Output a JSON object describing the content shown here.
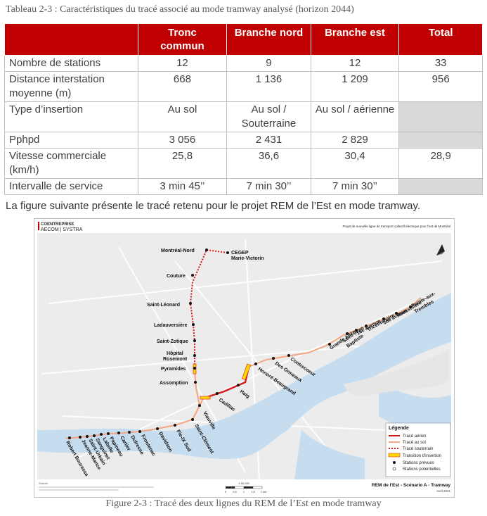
{
  "table_caption": "Tableau 2-3 : Caractéristiques du tracé associé au mode tramway analysé (horizon 2044)",
  "table": {
    "headers": [
      "",
      "Tronc\ncommun",
      "Branche nord",
      "Branche est",
      "Total"
    ],
    "header_lines": [
      [
        "",
        ""
      ],
      [
        "Tronc",
        "commun"
      ],
      [
        "Branche nord",
        ""
      ],
      [
        "Branche est",
        ""
      ],
      [
        "Total",
        ""
      ]
    ],
    "rows": [
      {
        "label": "Nombre de stations",
        "cells": [
          "12",
          "9",
          "12",
          "33"
        ]
      },
      {
        "label": "Distance interstation moyenne (m)",
        "cells": [
          "668",
          "1 136",
          "1 209",
          "956"
        ]
      },
      {
        "label": "Type d’insertion",
        "cells": [
          "Au sol",
          "Au sol / Souterraine",
          "Au sol / aérienne",
          ""
        ]
      },
      {
        "label": "Pphpd",
        "cells": [
          "3 056",
          "2 431",
          "2 829",
          ""
        ]
      },
      {
        "label": "Vitesse commerciale (km/h)",
        "cells": [
          "25,8",
          "36,6",
          "30,4",
          "28,9"
        ]
      },
      {
        "label": "Intervalle de service",
        "cells": [
          "3 min 45’’",
          "7 min 30’’",
          "7 min 30’’",
          ""
        ]
      }
    ],
    "grey_cells": [
      [
        2,
        3
      ],
      [
        3,
        3
      ],
      [
        5,
        3
      ]
    ]
  },
  "paragraph": "La figure suivante présente le tracé retenu pour le projet REM de l’Est en mode tramway.",
  "map": {
    "brand_line1": "COENTREPRISE",
    "brand_line2": "AECOM | SYSTRA",
    "header_title": "Projet de nouvelle ligne de transport collectif électrique pour l'est de Montréal",
    "north_stations": [
      "Montréal-Nord",
      "CEGEP Marie-Victorin",
      "Couture",
      "Saint-Léonard",
      "Ladauversière",
      "Saint-Zotique",
      "Hôpital Rosemont",
      "Pyramides",
      "Assomption"
    ],
    "east_stations": [
      "Cadillac",
      "Haig",
      "Honoré-Beaugrand",
      "Des Ormeaux",
      "Contrecoeur",
      "Grande Allée",
      "Saint-Jean Baptiste",
      "16e avenue",
      "Tricentenaire",
      "36e avenue",
      "Rousselière",
      "Pointe-aux-Trembles"
    ],
    "trunk_stations": [
      "Viauville",
      "Saint-Clément",
      "Pie-IX Sud",
      "Davidson",
      "Frontenac",
      "Dufresne",
      "Cartier",
      "Papineau",
      "Labelle",
      "Sanguinet",
      "Saint-Urbain",
      "Jeanne-Mance",
      "Robert Bourassa"
    ],
    "legend": {
      "title": "Légende",
      "items": [
        "Tracé aérien",
        "Tracé au sol",
        "Tracé souterrain",
        "Transition d'insertion",
        "Stations prévues",
        "Stations potentielles"
      ]
    },
    "source_label": "Source:",
    "scale_labels": [
      "0",
      "0,5",
      "1",
      "1,5",
      "2 km"
    ],
    "scale_ratio": "1:30 000",
    "footer_title": "REM de l'Est - Scénario A - Tramway",
    "footer_date": "Avril 2021",
    "colors": {
      "aerial": "#d7191c",
      "ground": "#f4a582",
      "tunnel": "#d7191c",
      "transition": "#ffd700",
      "water": "#c6dcef",
      "land": "#eeeeee"
    }
  },
  "figure_caption": "Figure 2-3 : Tracé des deux lignes du REM de l’Est en mode tramway"
}
